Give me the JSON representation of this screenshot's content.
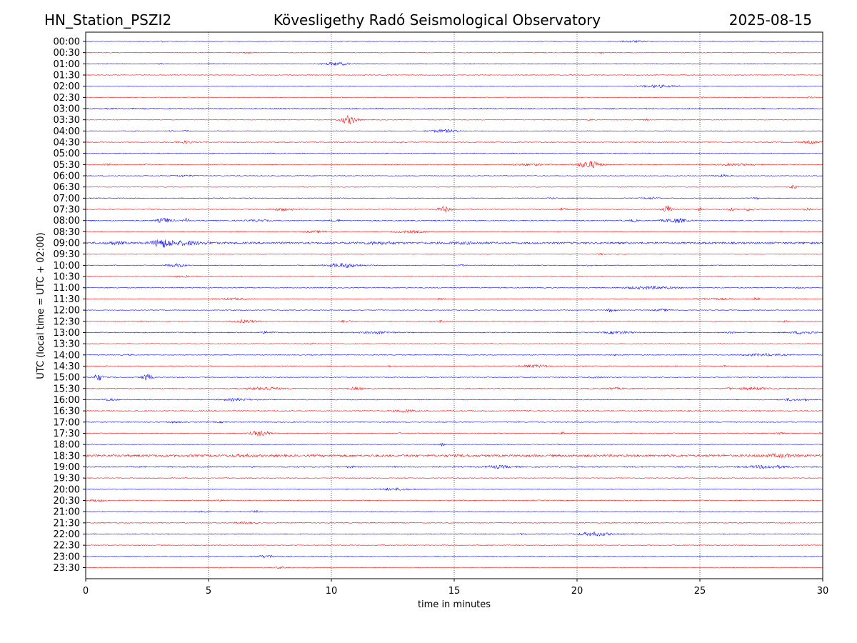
{
  "header": {
    "station": "HN_Station_PSZI2",
    "observatory": "Kövesligethy Radó Seismological Observatory",
    "date": "2025-08-15"
  },
  "chart_data": {
    "type": "line",
    "title": "Kövesligethy Radó Seismological Observatory",
    "xlabel": "time in minutes",
    "ylabel": "UTC (local time = UTC + 02:00)",
    "xlim": [
      0,
      30
    ],
    "xticks": [
      "0",
      "5",
      "10",
      "15",
      "20",
      "25",
      "30"
    ],
    "grid_x": "dotted vertical lines at 5, 10, 15, 20, 25",
    "colors": {
      "even_hour": "#0000ff",
      "half_hour": "#ff0000",
      "axes": "#000000"
    },
    "rows": [
      {
        "label": "00:00",
        "color": "#0000ff",
        "noise": 0.3,
        "events": [
          {
            "t": 3.1,
            "amp": 0.5,
            "dur": 0.1
          },
          {
            "t": 22.3,
            "amp": 0.6,
            "dur": 1.2
          }
        ]
      },
      {
        "label": "00:30",
        "color": "#ff0000",
        "noise": 0.3,
        "events": [
          {
            "t": 6.6,
            "amp": 0.5,
            "dur": 0.5
          },
          {
            "t": 21.0,
            "amp": 0.4,
            "dur": 0.2
          }
        ]
      },
      {
        "label": "01:00",
        "color": "#0000ff",
        "noise": 0.35,
        "events": [
          {
            "t": 10.2,
            "amp": 1.2,
            "dur": 1.2
          },
          {
            "t": 3.1,
            "amp": 0.6,
            "dur": 0.2
          }
        ]
      },
      {
        "label": "01:30",
        "color": "#ff0000",
        "noise": 0.3,
        "events": []
      },
      {
        "label": "02:00",
        "color": "#0000ff",
        "noise": 0.3,
        "events": [
          {
            "t": 23.3,
            "amp": 1.0,
            "dur": 1.6
          }
        ]
      },
      {
        "label": "02:30",
        "color": "#ff0000",
        "noise": 0.3,
        "events": [
          {
            "t": 25.1,
            "amp": 0.4,
            "dur": 0.3
          },
          {
            "t": 29.5,
            "amp": 0.4,
            "dur": 0.3
          }
        ]
      },
      {
        "label": "03:00",
        "color": "#0000ff",
        "noise": 0.5,
        "events": []
      },
      {
        "label": "03:30",
        "color": "#ff0000",
        "noise": 0.3,
        "events": [
          {
            "t": 10.7,
            "amp": 3.5,
            "dur": 0.7
          },
          {
            "t": 20.6,
            "amp": 0.6,
            "dur": 0.2
          },
          {
            "t": 22.8,
            "amp": 0.6,
            "dur": 0.2
          }
        ]
      },
      {
        "label": "04:00",
        "color": "#0000ff",
        "noise": 0.3,
        "events": [
          {
            "t": 14.6,
            "amp": 1.3,
            "dur": 1.2
          },
          {
            "t": 3.5,
            "amp": 0.6,
            "dur": 0.2
          },
          {
            "t": 4.1,
            "amp": 0.6,
            "dur": 0.2
          },
          {
            "t": 2.0,
            "amp": 0.5,
            "dur": 0.1
          }
        ]
      },
      {
        "label": "04:30",
        "color": "#ff0000",
        "noise": 0.35,
        "events": [
          {
            "t": 4.1,
            "amp": 1.0,
            "dur": 0.6
          },
          {
            "t": 12.8,
            "amp": 1.5,
            "dur": 0.1
          },
          {
            "t": 29.5,
            "amp": 1.1,
            "dur": 0.8
          }
        ]
      },
      {
        "label": "05:00",
        "color": "#0000ff",
        "noise": 0.4,
        "events": []
      },
      {
        "label": "05:30",
        "color": "#ff0000",
        "noise": 0.35,
        "events": [
          {
            "t": 0.9,
            "amp": 0.6,
            "dur": 0.5
          },
          {
            "t": 2.5,
            "amp": 0.5,
            "dur": 0.3
          },
          {
            "t": 18.0,
            "amp": 0.8,
            "dur": 1.6
          },
          {
            "t": 20.5,
            "amp": 3.0,
            "dur": 1.0
          },
          {
            "t": 26.5,
            "amp": 0.8,
            "dur": 1.6
          }
        ]
      },
      {
        "label": "06:00",
        "color": "#0000ff",
        "noise": 0.3,
        "events": [
          {
            "t": 4.0,
            "amp": 0.7,
            "dur": 0.8
          },
          {
            "t": 25.9,
            "amp": 0.8,
            "dur": 0.7
          }
        ]
      },
      {
        "label": "06:30",
        "color": "#ff0000",
        "noise": 0.3,
        "events": [
          {
            "t": 8.8,
            "amp": 0.8,
            "dur": 0.1
          },
          {
            "t": 28.8,
            "amp": 2.0,
            "dur": 0.2
          }
        ]
      },
      {
        "label": "07:00",
        "color": "#0000ff",
        "noise": 0.35,
        "events": [
          {
            "t": 19.0,
            "amp": 0.5,
            "dur": 0.3
          },
          {
            "t": 23.0,
            "amp": 0.8,
            "dur": 0.6
          },
          {
            "t": 27.3,
            "amp": 0.5,
            "dur": 0.3
          }
        ]
      },
      {
        "label": "07:30",
        "color": "#ff0000",
        "noise": 0.35,
        "events": [
          {
            "t": 8.0,
            "amp": 1.0,
            "dur": 1.0
          },
          {
            "t": 14.6,
            "amp": 2.5,
            "dur": 0.5
          },
          {
            "t": 19.4,
            "amp": 1.0,
            "dur": 0.3
          },
          {
            "t": 23.7,
            "amp": 3.5,
            "dur": 0.4
          },
          {
            "t": 25.0,
            "amp": 1.5,
            "dur": 0.2
          },
          {
            "t": 26.3,
            "amp": 1.2,
            "dur": 0.3
          },
          {
            "t": 27.0,
            "amp": 1.0,
            "dur": 0.4
          },
          {
            "t": 29.4,
            "amp": 1.2,
            "dur": 0.3
          }
        ]
      },
      {
        "label": "08:00",
        "color": "#0000ff",
        "noise": 0.45,
        "events": [
          {
            "t": 3.2,
            "amp": 2.0,
            "dur": 0.6
          },
          {
            "t": 4.1,
            "amp": 1.8,
            "dur": 0.2
          },
          {
            "t": 7.0,
            "amp": 0.8,
            "dur": 0.8
          },
          {
            "t": 10.2,
            "amp": 1.0,
            "dur": 0.4
          },
          {
            "t": 22.3,
            "amp": 1.0,
            "dur": 0.3
          },
          {
            "t": 24.0,
            "amp": 1.8,
            "dur": 1.0
          }
        ]
      },
      {
        "label": "08:30",
        "color": "#ff0000",
        "noise": 0.35,
        "events": [
          {
            "t": 9.5,
            "amp": 0.8,
            "dur": 1.2
          },
          {
            "t": 13.3,
            "amp": 0.9,
            "dur": 1.4
          },
          {
            "t": 6.2,
            "amp": 0.5,
            "dur": 0.2
          }
        ]
      },
      {
        "label": "09:00",
        "color": "#0000ff",
        "noise": 0.8,
        "events": [
          {
            "t": 3.1,
            "amp": 3.0,
            "dur": 0.8
          },
          {
            "t": 4.0,
            "amp": 1.5,
            "dur": 1.8
          },
          {
            "t": 1.2,
            "amp": 1.0,
            "dur": 0.8
          },
          {
            "t": 12.0,
            "amp": 0.8,
            "dur": 1.5
          },
          {
            "t": 15.5,
            "amp": 0.6,
            "dur": 1.5
          }
        ]
      },
      {
        "label": "09:30",
        "color": "#ff0000",
        "noise": 0.3,
        "events": [
          {
            "t": 21.0,
            "amp": 0.6,
            "dur": 0.4
          }
        ]
      },
      {
        "label": "10:00",
        "color": "#0000ff",
        "noise": 0.35,
        "events": [
          {
            "t": 3.7,
            "amp": 1.2,
            "dur": 0.9
          },
          {
            "t": 10.5,
            "amp": 1.8,
            "dur": 1.4
          },
          {
            "t": 15.3,
            "amp": 0.5,
            "dur": 0.3
          },
          {
            "t": 20.5,
            "amp": 0.5,
            "dur": 0.3
          }
        ]
      },
      {
        "label": "10:30",
        "color": "#ff0000",
        "noise": 0.35,
        "events": [
          {
            "t": 4.0,
            "amp": 0.6,
            "dur": 1.2
          }
        ]
      },
      {
        "label": "11:00",
        "color": "#0000ff",
        "noise": 0.35,
        "events": [
          {
            "t": 23.0,
            "amp": 1.2,
            "dur": 2.2
          },
          {
            "t": 29.0,
            "amp": 0.5,
            "dur": 0.3
          }
        ]
      },
      {
        "label": "11:30",
        "color": "#ff0000",
        "noise": 0.35,
        "events": [
          {
            "t": 6.0,
            "amp": 0.7,
            "dur": 1.2
          },
          {
            "t": 25.5,
            "amp": 0.7,
            "dur": 1.5
          },
          {
            "t": 27.3,
            "amp": 1.2,
            "dur": 0.2
          },
          {
            "t": 14.5,
            "amp": 0.5,
            "dur": 0.3
          }
        ]
      },
      {
        "label": "12:00",
        "color": "#0000ff",
        "noise": 0.3,
        "events": [
          {
            "t": 21.4,
            "amp": 1.8,
            "dur": 0.3
          },
          {
            "t": 23.5,
            "amp": 0.8,
            "dur": 0.8
          }
        ]
      },
      {
        "label": "12:30",
        "color": "#ff0000",
        "noise": 0.35,
        "events": [
          {
            "t": 6.5,
            "amp": 1.3,
            "dur": 0.9
          },
          {
            "t": 10.6,
            "amp": 0.8,
            "dur": 0.5
          },
          {
            "t": 14.5,
            "amp": 0.6,
            "dur": 0.6
          },
          {
            "t": 2.5,
            "amp": 0.4,
            "dur": 0.5
          },
          {
            "t": 28.5,
            "amp": 0.5,
            "dur": 0.4
          }
        ]
      },
      {
        "label": "13:00",
        "color": "#0000ff",
        "noise": 0.4,
        "events": [
          {
            "t": 7.4,
            "amp": 0.8,
            "dur": 0.6
          },
          {
            "t": 11.9,
            "amp": 0.8,
            "dur": 1.4
          },
          {
            "t": 21.7,
            "amp": 1.0,
            "dur": 1.2
          },
          {
            "t": 29.2,
            "amp": 1.2,
            "dur": 1.0
          },
          {
            "t": 26.3,
            "amp": 0.5,
            "dur": 0.4
          }
        ]
      },
      {
        "label": "13:30",
        "color": "#ff0000",
        "noise": 0.3,
        "events": [
          {
            "t": 9.2,
            "amp": 0.5,
            "dur": 0.4
          }
        ]
      },
      {
        "label": "14:00",
        "color": "#0000ff",
        "noise": 0.35,
        "events": [
          {
            "t": 1.8,
            "amp": 0.4,
            "dur": 0.3
          },
          {
            "t": 21.5,
            "amp": 0.5,
            "dur": 0.3
          },
          {
            "t": 27.6,
            "amp": 1.0,
            "dur": 1.8
          }
        ]
      },
      {
        "label": "14:30",
        "color": "#ff0000",
        "noise": 0.35,
        "events": [
          {
            "t": 18.3,
            "amp": 1.2,
            "dur": 1.0
          },
          {
            "t": 12.4,
            "amp": 0.6,
            "dur": 0.2
          },
          {
            "t": 0.8,
            "amp": 0.4,
            "dur": 0.3
          },
          {
            "t": 26.0,
            "amp": 0.5,
            "dur": 0.3
          }
        ]
      },
      {
        "label": "15:00",
        "color": "#0000ff",
        "noise": 0.35,
        "events": [
          {
            "t": 0.5,
            "amp": 3.0,
            "dur": 0.4
          },
          {
            "t": 2.5,
            "amp": 2.8,
            "dur": 0.4
          },
          {
            "t": 20.8,
            "amp": 0.5,
            "dur": 0.6
          }
        ]
      },
      {
        "label": "15:30",
        "color": "#ff0000",
        "noise": 0.35,
        "events": [
          {
            "t": 7.3,
            "amp": 1.3,
            "dur": 1.3
          },
          {
            "t": 11.0,
            "amp": 1.0,
            "dur": 0.7
          },
          {
            "t": 21.5,
            "amp": 0.6,
            "dur": 1.0
          },
          {
            "t": 27.2,
            "amp": 1.0,
            "dur": 1.4
          },
          {
            "t": 26.2,
            "amp": 0.6,
            "dur": 0.2
          }
        ]
      },
      {
        "label": "16:00",
        "color": "#0000ff",
        "noise": 0.35,
        "events": [
          {
            "t": 1.0,
            "amp": 0.7,
            "dur": 0.7
          },
          {
            "t": 6.2,
            "amp": 1.0,
            "dur": 1.2
          },
          {
            "t": 28.7,
            "amp": 1.0,
            "dur": 0.7
          },
          {
            "t": 29.3,
            "amp": 0.7,
            "dur": 0.3
          }
        ]
      },
      {
        "label": "16:30",
        "color": "#ff0000",
        "noise": 0.45,
        "events": [
          {
            "t": 13.0,
            "amp": 0.9,
            "dur": 1.0
          }
        ]
      },
      {
        "label": "17:00",
        "color": "#0000ff",
        "noise": 0.4,
        "events": [
          {
            "t": 3.6,
            "amp": 0.6,
            "dur": 0.5
          },
          {
            "t": 5.5,
            "amp": 0.4,
            "dur": 0.5
          }
        ]
      },
      {
        "label": "17:30",
        "color": "#ff0000",
        "noise": 0.35,
        "events": [
          {
            "t": 7.1,
            "amp": 2.3,
            "dur": 0.8
          },
          {
            "t": 12.8,
            "amp": 0.5,
            "dur": 0.1
          },
          {
            "t": 19.4,
            "amp": 1.0,
            "dur": 0.2
          },
          {
            "t": 28.2,
            "amp": 1.0,
            "dur": 0.3
          },
          {
            "t": 29.9,
            "amp": 0.6,
            "dur": 0.1
          }
        ]
      },
      {
        "label": "18:00",
        "color": "#0000ff",
        "noise": 0.3,
        "events": [
          {
            "t": 14.5,
            "amp": 1.3,
            "dur": 0.2
          }
        ]
      },
      {
        "label": "18:30",
        "color": "#ff0000",
        "noise": 0.9,
        "events": [
          {
            "t": 28.3,
            "amp": 1.0,
            "dur": 1.6
          },
          {
            "t": 6.5,
            "amp": 0.7,
            "dur": 1.0
          }
        ]
      },
      {
        "label": "19:00",
        "color": "#0000ff",
        "noise": 0.55,
        "events": [
          {
            "t": 16.8,
            "amp": 1.0,
            "dur": 1.2
          },
          {
            "t": 27.8,
            "amp": 1.2,
            "dur": 1.6
          },
          {
            "t": 10.8,
            "amp": 0.5,
            "dur": 0.4
          }
        ]
      },
      {
        "label": "19:30",
        "color": "#ff0000",
        "noise": 0.3,
        "events": []
      },
      {
        "label": "20:00",
        "color": "#0000ff",
        "noise": 0.35,
        "events": [
          {
            "t": 12.6,
            "amp": 0.9,
            "dur": 1.4
          }
        ]
      },
      {
        "label": "20:30",
        "color": "#ff0000",
        "noise": 0.4,
        "events": [
          {
            "t": 0.5,
            "amp": 0.8,
            "dur": 0.6
          },
          {
            "t": 5.5,
            "amp": 0.4,
            "dur": 0.6
          }
        ]
      },
      {
        "label": "21:00",
        "color": "#0000ff",
        "noise": 0.35,
        "events": [
          {
            "t": 6.9,
            "amp": 0.8,
            "dur": 0.4
          },
          {
            "t": 4.8,
            "amp": 0.4,
            "dur": 0.6
          }
        ]
      },
      {
        "label": "21:30",
        "color": "#ff0000",
        "noise": 0.35,
        "events": [
          {
            "t": 6.5,
            "amp": 0.6,
            "dur": 1.0
          }
        ]
      },
      {
        "label": "22:00",
        "color": "#0000ff",
        "noise": 0.4,
        "events": [
          {
            "t": 20.7,
            "amp": 1.5,
            "dur": 1.4
          },
          {
            "t": 17.8,
            "amp": 0.4,
            "dur": 0.4
          }
        ]
      },
      {
        "label": "22:30",
        "color": "#ff0000",
        "noise": 0.35,
        "events": []
      },
      {
        "label": "23:00",
        "color": "#0000ff",
        "noise": 0.35,
        "events": [
          {
            "t": 7.4,
            "amp": 1.0,
            "dur": 0.9
          }
        ]
      },
      {
        "label": "23:30",
        "color": "#ff0000",
        "noise": 0.3,
        "events": [
          {
            "t": 7.9,
            "amp": 0.7,
            "dur": 0.4
          }
        ]
      }
    ]
  }
}
